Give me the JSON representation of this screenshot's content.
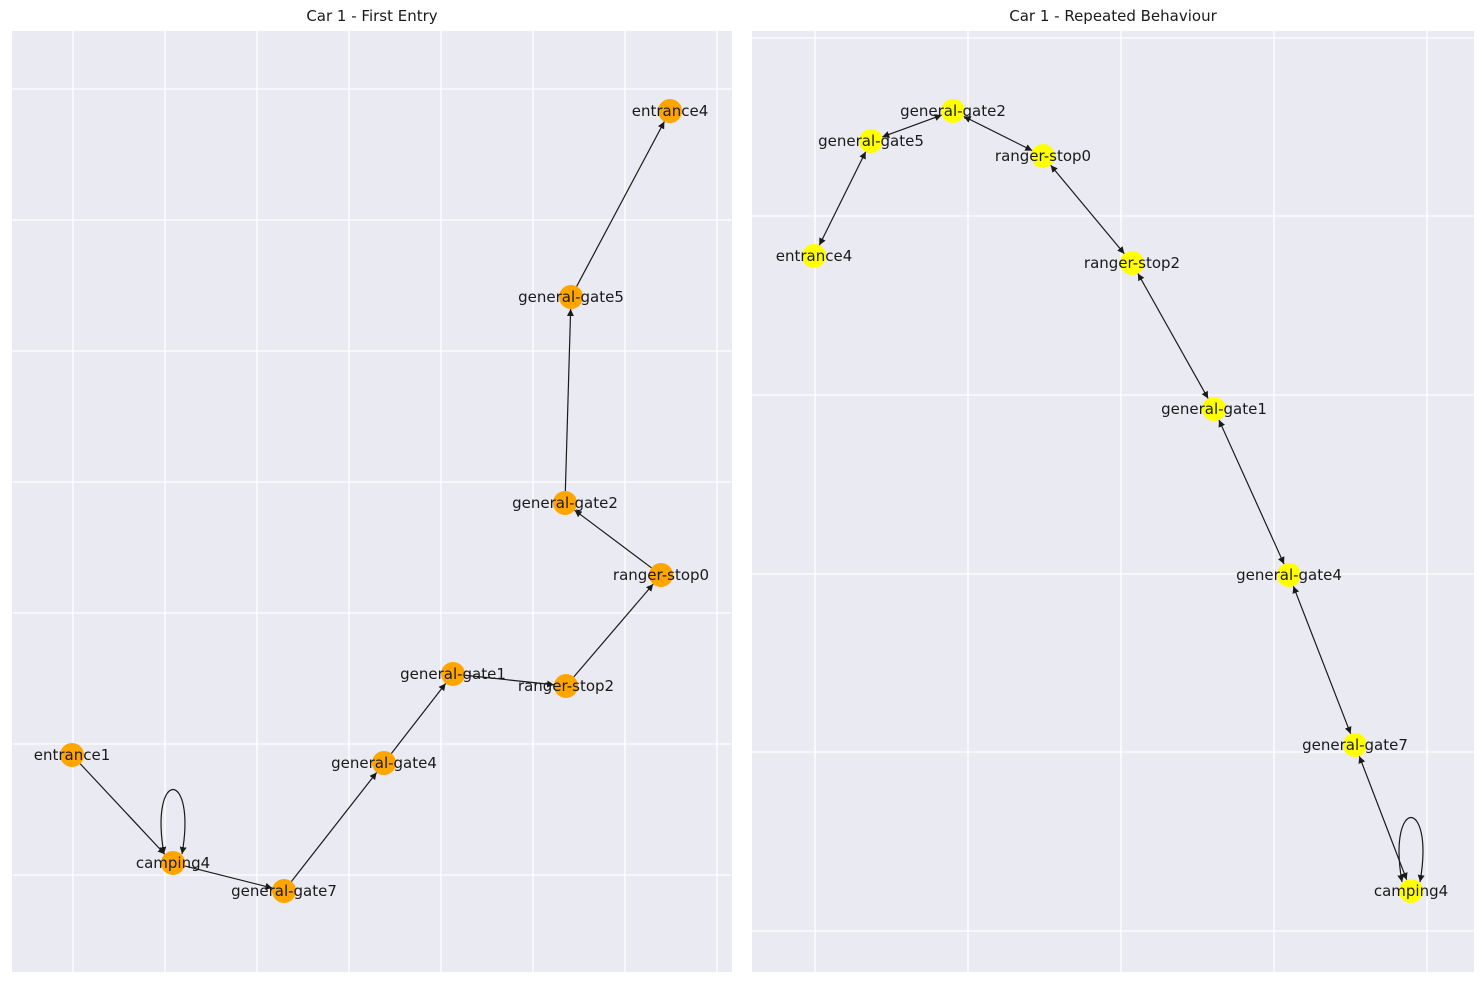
{
  "panels": [
    {
      "id": "left",
      "title": "Car 1 - First Entry",
      "node_color": "#ffa500",
      "nodes": [
        {
          "id": "entrance1",
          "label": "entrance1"
        },
        {
          "id": "camping4",
          "label": "camping4"
        },
        {
          "id": "general-gate7",
          "label": "general-gate7"
        },
        {
          "id": "general-gate4",
          "label": "general-gate4"
        },
        {
          "id": "general-gate1",
          "label": "general-gate1"
        },
        {
          "id": "ranger-stop2",
          "label": "ranger-stop2"
        },
        {
          "id": "ranger-stop0",
          "label": "ranger-stop0"
        },
        {
          "id": "general-gate2",
          "label": "general-gate2"
        },
        {
          "id": "general-gate5",
          "label": "general-gate5"
        },
        {
          "id": "entrance4",
          "label": "entrance4"
        }
      ],
      "edges": [
        {
          "from": "entrance1",
          "to": "camping4",
          "bidirectional": false
        },
        {
          "from": "camping4",
          "to": "camping4",
          "bidirectional": false
        },
        {
          "from": "camping4",
          "to": "general-gate7",
          "bidirectional": false
        },
        {
          "from": "general-gate7",
          "to": "general-gate4",
          "bidirectional": false
        },
        {
          "from": "general-gate4",
          "to": "general-gate1",
          "bidirectional": false
        },
        {
          "from": "general-gate1",
          "to": "ranger-stop2",
          "bidirectional": false
        },
        {
          "from": "ranger-stop2",
          "to": "ranger-stop0",
          "bidirectional": false
        },
        {
          "from": "ranger-stop0",
          "to": "general-gate2",
          "bidirectional": false
        },
        {
          "from": "general-gate2",
          "to": "general-gate5",
          "bidirectional": false
        },
        {
          "from": "general-gate5",
          "to": "entrance4",
          "bidirectional": false
        }
      ]
    },
    {
      "id": "right",
      "title": "Car 1 - Repeated Behaviour",
      "node_color": "#ffff00",
      "nodes": [
        {
          "id": "general-gate2",
          "label": "general-gate2"
        },
        {
          "id": "general-gate5",
          "label": "general-gate5"
        },
        {
          "id": "ranger-stop0",
          "label": "ranger-stop0"
        },
        {
          "id": "entrance4",
          "label": "entrance4"
        },
        {
          "id": "ranger-stop2",
          "label": "ranger-stop2"
        },
        {
          "id": "general-gate1",
          "label": "general-gate1"
        },
        {
          "id": "general-gate4",
          "label": "general-gate4"
        },
        {
          "id": "general-gate7",
          "label": "general-gate7"
        },
        {
          "id": "camping4",
          "label": "camping4"
        }
      ],
      "edges": [
        {
          "from": "general-gate2",
          "to": "general-gate5",
          "bidirectional": true
        },
        {
          "from": "general-gate2",
          "to": "ranger-stop0",
          "bidirectional": true
        },
        {
          "from": "general-gate5",
          "to": "entrance4",
          "bidirectional": true
        },
        {
          "from": "ranger-stop0",
          "to": "ranger-stop2",
          "bidirectional": true
        },
        {
          "from": "ranger-stop2",
          "to": "general-gate1",
          "bidirectional": true
        },
        {
          "from": "general-gate1",
          "to": "general-gate4",
          "bidirectional": true
        },
        {
          "from": "general-gate4",
          "to": "general-gate7",
          "bidirectional": true
        },
        {
          "from": "general-gate7",
          "to": "camping4",
          "bidirectional": true
        },
        {
          "from": "camping4",
          "to": "camping4",
          "bidirectional": false
        }
      ]
    }
  ],
  "colors": {
    "axes_background": "#eaeaf2",
    "grid": "#ffffff",
    "edge": "#1a1a1a"
  }
}
